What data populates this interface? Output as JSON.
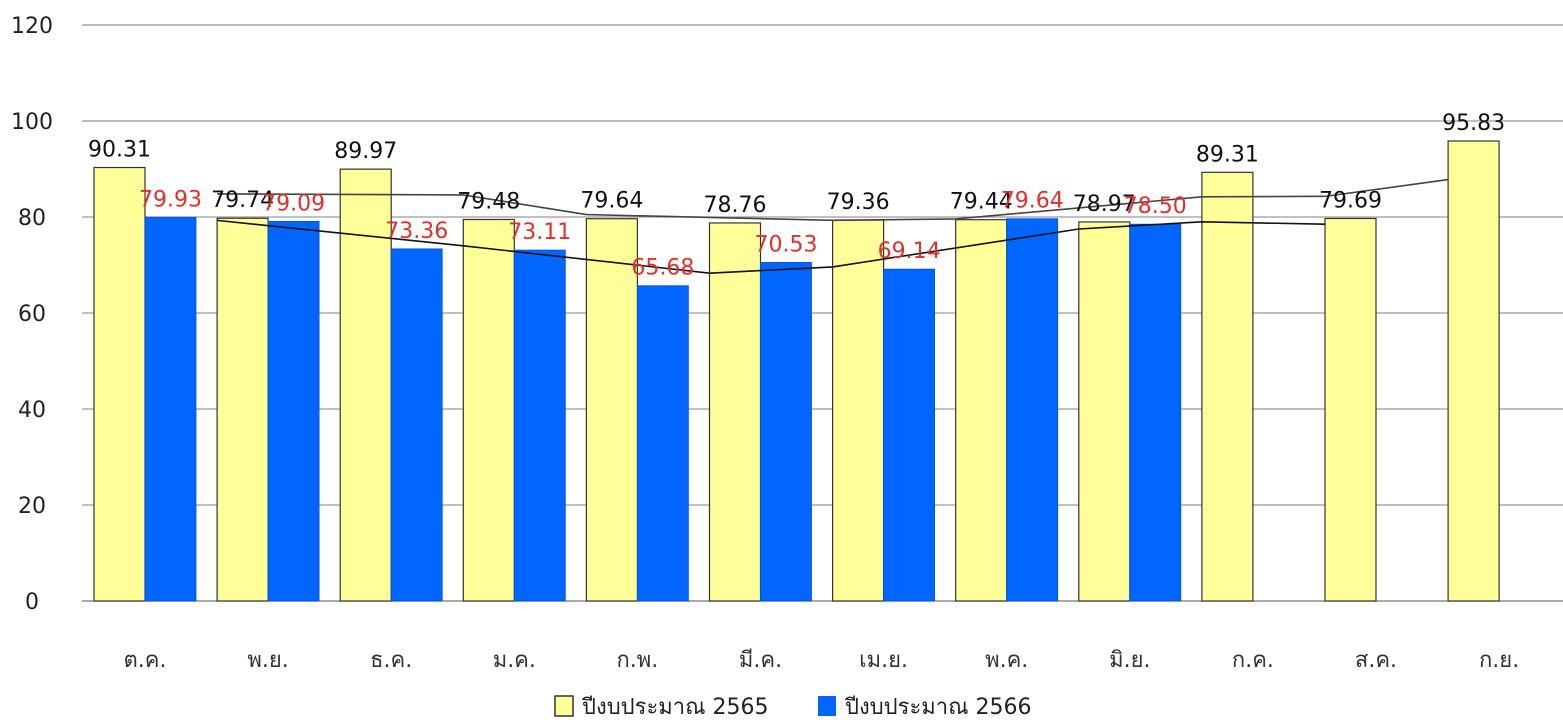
{
  "chart_data": {
    "type": "bar",
    "categories": [
      "ต.ค.",
      "พ.ย.",
      "ธ.ค.",
      "ม.ค.",
      "ก.พ.",
      "มี.ค.",
      "เม.ย.",
      "พ.ค.",
      "มิ.ย.",
      "ก.ค.",
      "ส.ค.",
      "ก.ย."
    ],
    "series": [
      {
        "name": "ปีงบประมาณ 2565",
        "color": "#ffff99",
        "label_color": "#111111",
        "values": [
          90.31,
          79.74,
          89.97,
          79.48,
          79.64,
          78.76,
          79.36,
          79.44,
          78.97,
          89.31,
          79.69,
          95.83
        ],
        "labels": [
          "90.31",
          "79.74",
          "89.97",
          "79.48",
          "79.64",
          "78.76",
          "79.36",
          "79.44",
          "78.97",
          "89.31",
          "79.69",
          "95.83"
        ]
      },
      {
        "name": "ปีงบประมาณ 2566",
        "color": "#0066ff",
        "label_color": "#e0302a",
        "values": [
          79.93,
          79.09,
          73.36,
          73.11,
          65.68,
          70.53,
          69.14,
          79.64,
          78.5,
          null,
          null,
          null
        ],
        "labels": [
          "79.93",
          "79.09",
          "73.36",
          "73.11",
          "65.68",
          "70.53",
          "69.14",
          "79.64",
          "78.50",
          "",
          "",
          ""
        ]
      }
    ],
    "trendlines": [
      {
        "series": "ปีงบประมาณ 2565",
        "points": [
          [
            2,
            84.8
          ],
          [
            4,
            84.6
          ],
          [
            5,
            80.5
          ],
          [
            7,
            79.3
          ],
          [
            8,
            79.6
          ],
          [
            10,
            84.2
          ],
          [
            11,
            84.3
          ],
          [
            12,
            87.8
          ]
        ]
      },
      {
        "series": "ปีงบประมาณ 2566",
        "points": [
          [
            2,
            79.3
          ],
          [
            4,
            74.0
          ],
          [
            6,
            68.3
          ],
          [
            7,
            69.6
          ],
          [
            9,
            77.5
          ],
          [
            10,
            79.0
          ],
          [
            11,
            78.5
          ]
        ]
      }
    ],
    "yticks": [
      "0",
      "20",
      "40",
      "60",
      "80",
      "100",
      "120"
    ],
    "ylim": [
      0,
      120
    ],
    "grid": true,
    "legend": "bottom"
  }
}
